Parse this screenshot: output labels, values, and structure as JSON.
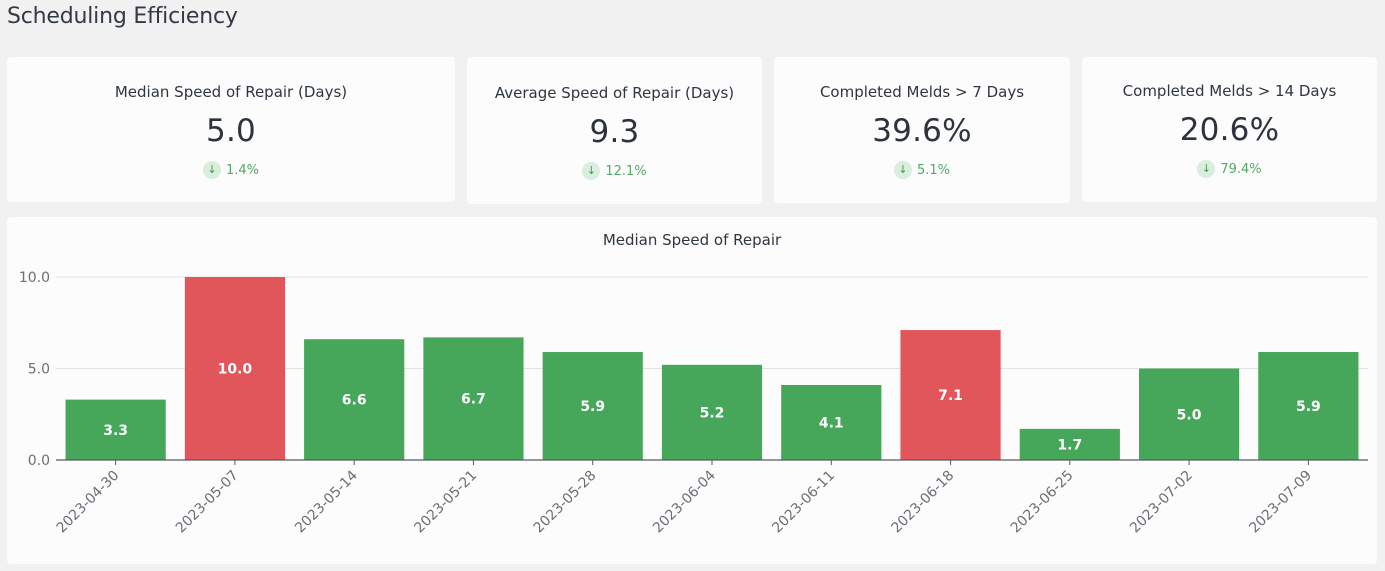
{
  "page": {
    "title": "Scheduling Efficiency"
  },
  "kpis": [
    {
      "title": "Median Speed of Repair (Days)",
      "value": "5.0",
      "delta": "1.4%",
      "direction": "down",
      "icon": "arrow-down-icon"
    },
    {
      "title": "Average Speed of Repair (Days)",
      "value": "9.3",
      "delta": "12.1%",
      "direction": "down",
      "icon": "arrow-down-icon"
    },
    {
      "title": "Completed Melds > 7 Days",
      "value": "39.6%",
      "delta": "5.1%",
      "direction": "down",
      "icon": "arrow-down-icon"
    },
    {
      "title": "Completed Melds > 14 Days",
      "value": "20.6%",
      "delta": "79.4%",
      "direction": "down",
      "icon": "arrow-down-icon"
    }
  ],
  "colors": {
    "good": "#46a75a",
    "bad": "#e0565b",
    "delta_text": "#55a868",
    "delta_badge_bg": "#d9eedc"
  },
  "chart_data": {
    "type": "bar",
    "title": "Median Speed of Repair",
    "xlabel": "",
    "ylabel": "",
    "ylim": [
      0,
      10
    ],
    "yticks": [
      0,
      5,
      10
    ],
    "ytick_labels": [
      "0.0",
      "5.0",
      "10.0"
    ],
    "grid": true,
    "legend": "none",
    "categories": [
      "2023-04-30",
      "2023-05-07",
      "2023-05-14",
      "2023-05-21",
      "2023-05-28",
      "2023-06-04",
      "2023-06-11",
      "2023-06-18",
      "2023-06-25",
      "2023-07-02",
      "2023-07-09"
    ],
    "values": [
      3.3,
      10.0,
      6.6,
      6.7,
      5.9,
      5.2,
      4.1,
      7.1,
      1.7,
      5.0,
      5.9
    ],
    "value_labels": [
      "3.3",
      "10.0",
      "6.6",
      "6.7",
      "5.9",
      "5.2",
      "4.1",
      "7.1",
      "1.7",
      "5.0",
      "5.9"
    ],
    "bar_status": [
      "good",
      "bad",
      "good",
      "good",
      "good",
      "good",
      "good",
      "bad",
      "good",
      "good",
      "good"
    ]
  }
}
